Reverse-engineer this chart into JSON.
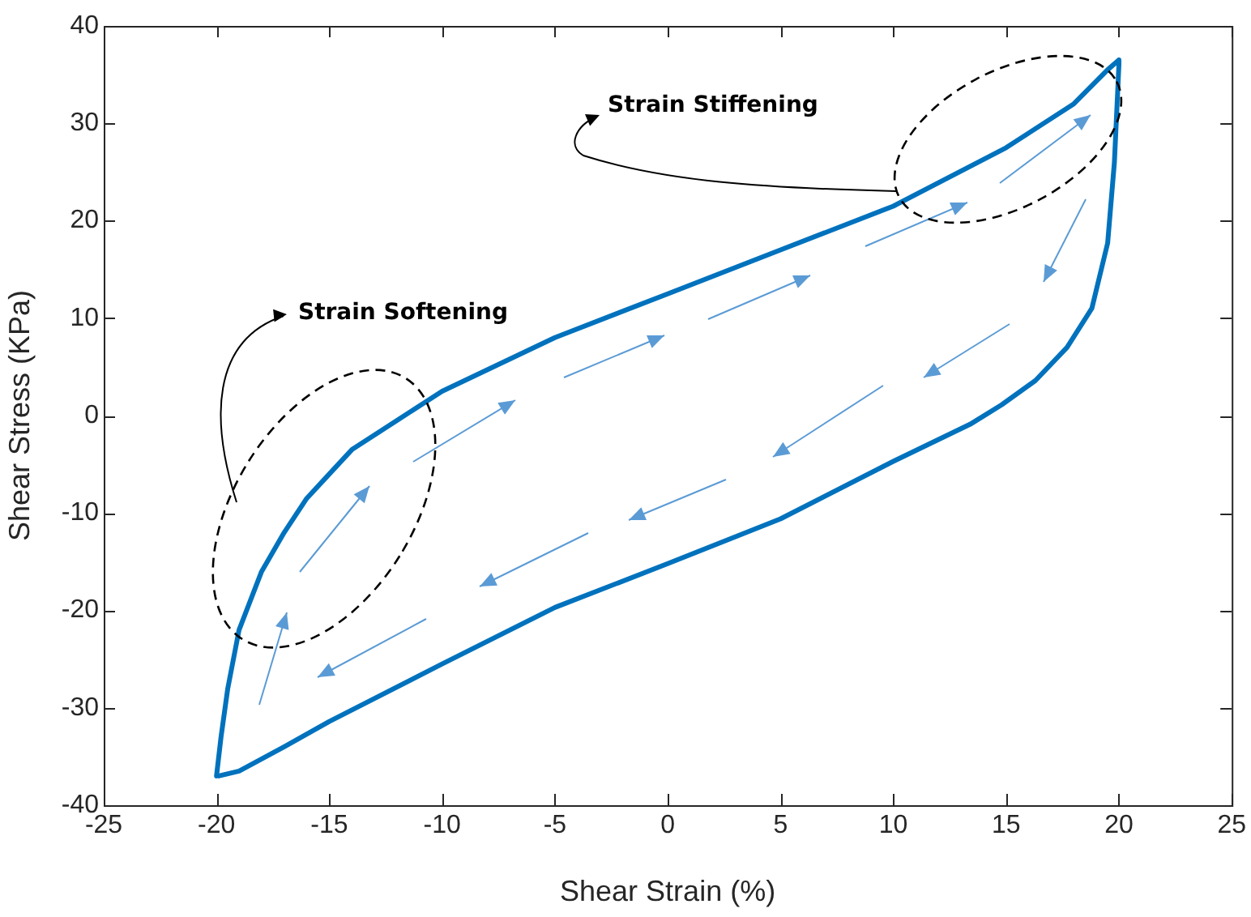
{
  "chart_data": {
    "type": "line",
    "xlabel": "Shear Strain (%)",
    "ylabel": "Shear Stress (KPa)",
    "xlim": [
      -25,
      25
    ],
    "xticks": [
      -25,
      -20,
      -15,
      -10,
      -5,
      0,
      5,
      10,
      15,
      20,
      25
    ],
    "ylim": [
      -40,
      40
    ],
    "yticks": [
      -40,
      -30,
      -20,
      -10,
      0,
      10,
      20,
      30,
      40
    ],
    "grid": false,
    "legend": false,
    "marker": "none",
    "line_style": "solid",
    "annotations": [
      "Strain Softening",
      "Strain Stiffening"
    ],
    "x": [
      -20,
      -19.8,
      -19.5,
      -19,
      -18,
      -17,
      -16,
      -15,
      -14,
      -12,
      -10,
      -5,
      0,
      5,
      10,
      15,
      18,
      19.5,
      20,
      20,
      19.8,
      19.5,
      18.8,
      17.7,
      16.3,
      14.8,
      13.4,
      10,
      5,
      0,
      -5,
      -10,
      -15,
      -17,
      -19,
      -19.9
    ],
    "series": [
      {
        "color": "#0072bd",
        "values": [
          -37,
          -33,
          -28,
          -22,
          -16,
          -12,
          -8.5,
          -6,
          -3.5,
          -0.5,
          2.5,
          8,
          12.5,
          17,
          21.5,
          27.5,
          32,
          35.5,
          36.5,
          36,
          26,
          17.7,
          11,
          7,
          3.6,
          1.1,
          -0.9,
          -4.7,
          -10.6,
          -15.2,
          -19.7,
          -25.5,
          -31.4,
          -34,
          -36.5,
          -37
        ]
      }
    ]
  }
}
